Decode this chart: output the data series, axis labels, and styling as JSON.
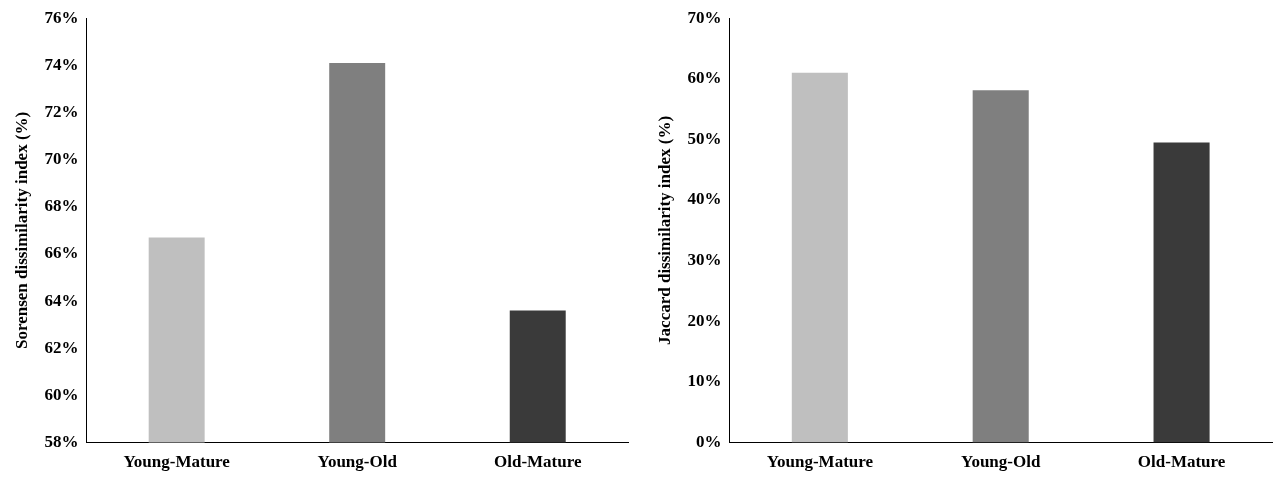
{
  "chart_data": [
    {
      "type": "bar",
      "categories": [
        "Young-Mature",
        "Young-Old",
        "Old-Mature"
      ],
      "values": [
        66.7,
        74.1,
        63.6
      ],
      "colors": [
        "#bfbfbf",
        "#7f7f7f",
        "#3a3a3a"
      ],
      "ylabel": "Sorensen dissimilarity index (%)",
      "ylim": [
        58,
        76
      ],
      "yticks": [
        {
          "value": 58,
          "label": "58%"
        },
        {
          "value": 60,
          "label": "60%"
        },
        {
          "value": 62,
          "label": "62%"
        },
        {
          "value": 64,
          "label": "64%"
        },
        {
          "value": 66,
          "label": "66%"
        },
        {
          "value": 68,
          "label": "68%"
        },
        {
          "value": 70,
          "label": "70%"
        },
        {
          "value": 72,
          "label": "72%"
        },
        {
          "value": 74,
          "label": "74%"
        },
        {
          "value": 76,
          "label": "76%"
        }
      ],
      "grid": false,
      "legend": false
    },
    {
      "type": "bar",
      "categories": [
        "Young-Mature",
        "Young-Old",
        "Old-Mature"
      ],
      "values": [
        61,
        58.1,
        49.5
      ],
      "colors": [
        "#bfbfbf",
        "#7f7f7f",
        "#3a3a3a"
      ],
      "ylabel": "Jaccard dissimilarity index (%)",
      "ylim": [
        0,
        70
      ],
      "yticks": [
        {
          "value": 0,
          "label": "0%"
        },
        {
          "value": 10,
          "label": "10%"
        },
        {
          "value": 20,
          "label": "20%"
        },
        {
          "value": 30,
          "label": "30%"
        },
        {
          "value": 40,
          "label": "40%"
        },
        {
          "value": 50,
          "label": "50%"
        },
        {
          "value": 60,
          "label": "60%"
        },
        {
          "value": 70,
          "label": "70%"
        }
      ],
      "grid": false,
      "legend": false
    }
  ]
}
